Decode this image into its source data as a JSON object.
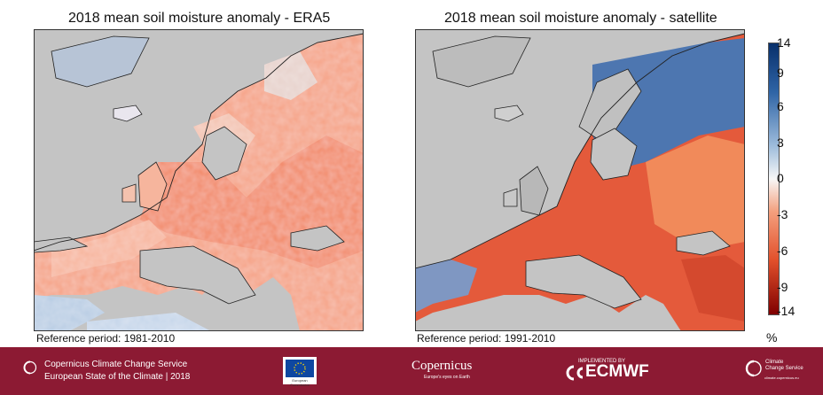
{
  "maps": [
    {
      "title": "2018 mean soil moisture anomaly - ERA5",
      "reference": "Reference period: 1981-2010"
    },
    {
      "title": "2018 mean soil moisture anomaly - satellite",
      "reference": "Reference period: 1991-2010"
    }
  ],
  "colorbar": {
    "unit": "%",
    "ticks": [
      "14",
      "9",
      "6",
      "3",
      "0",
      "-3",
      "-6",
      "-9",
      "-14"
    ],
    "colors": {
      "positive": "#08306b",
      "neutral": "#f7f7f7",
      "negative": "#7f0000"
    }
  },
  "footer": {
    "service_name": "Copernicus Climate Change Service",
    "report_name": "European State of the Climate | 2018",
    "logos": [
      "European Commission",
      "Copernicus",
      "ECMWF",
      "Climate Change Service"
    ],
    "copernicus_label": "Copernicus",
    "copernicus_tagline": "Europe's eyes on Earth",
    "ecmwf_prefix": "IMPLEMENTED BY",
    "ecmwf_label": "ECMWF",
    "ec_label": "European Commission",
    "ccs_label_1": "Climate",
    "ccs_label_2": "Change Service",
    "ccs_url": "climate.copernicus.eu",
    "brand_color": "#8c1a33"
  }
}
